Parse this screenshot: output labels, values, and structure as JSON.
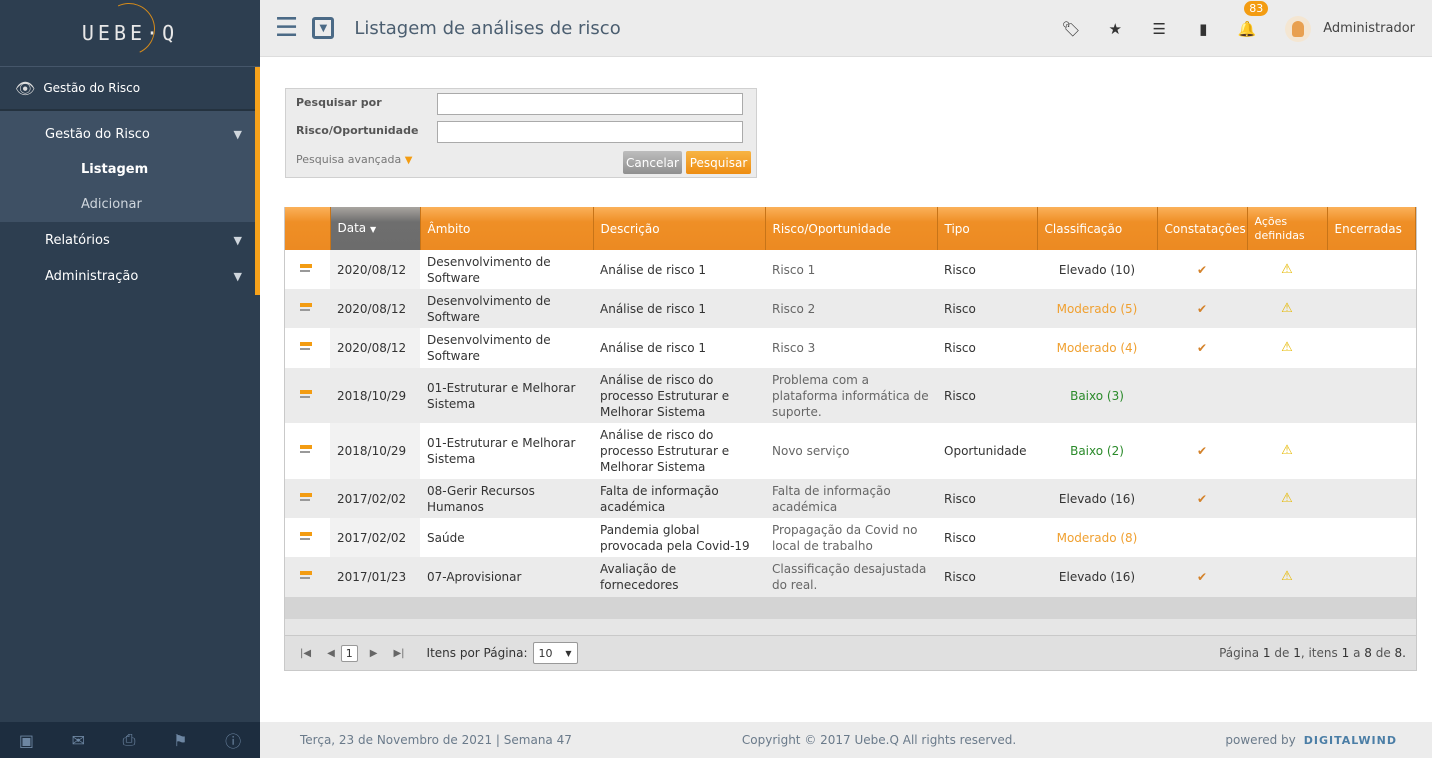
{
  "app": {
    "logo": "UEBE·Q"
  },
  "sidebar": {
    "section": "Gestão do Risco",
    "items": [
      {
        "label": "Gestão do Risco",
        "children": [
          {
            "label": "Listagem"
          },
          {
            "label": "Adicionar"
          }
        ]
      },
      {
        "label": "Relatórios"
      },
      {
        "label": "Administração"
      }
    ],
    "footer_icons": [
      "inbox-icon",
      "mail-icon",
      "print-icon",
      "flag-icon",
      "info-icon"
    ]
  },
  "header": {
    "title": "Listagem de análises de risco",
    "notifications": "83",
    "user": "Administrador"
  },
  "search": {
    "label1": "Pesquisar por",
    "label2": "Risco/Oportunidade",
    "value1": "",
    "value2": "",
    "advanced": "Pesquisa avançada",
    "cancel": "Cancelar",
    "submit": "Pesquisar"
  },
  "table": {
    "columns": [
      "Data",
      "Âmbito",
      "Descrição",
      "Risco/Oportunidade",
      "Tipo",
      "Classificação",
      "Constatações",
      "Ações definidas",
      "Encerradas"
    ],
    "rows": [
      {
        "data": "2020/08/12",
        "ambito": "Desenvolvimento de Software",
        "descricao": "Análise de risco 1",
        "risco": "Risco 1",
        "tipo": "Risco",
        "classificacao": "Elevado (10)",
        "level": "elevado",
        "constatacoes": "✔",
        "acoes": "⚠"
      },
      {
        "data": "2020/08/12",
        "ambito": "Desenvolvimento de Software",
        "descricao": "Análise de risco 1",
        "risco": "Risco 2",
        "tipo": "Risco",
        "classificacao": "Moderado (5)",
        "level": "moderado",
        "constatacoes": "✔",
        "acoes": "⚠"
      },
      {
        "data": "2020/08/12",
        "ambito": "Desenvolvimento de Software",
        "descricao": "Análise de risco 1",
        "risco": "Risco 3",
        "tipo": "Risco",
        "classificacao": "Moderado (4)",
        "level": "moderado",
        "constatacoes": "✔",
        "acoes": "⚠"
      },
      {
        "data": "2018/10/29",
        "ambito": "01-Estruturar e Melhorar Sistema",
        "descricao": "Análise de risco do processo Estruturar e Melhorar Sistema",
        "risco": "Problema com a plataforma informática de suporte.",
        "tipo": "Risco",
        "classificacao": "Baixo (3)",
        "level": "baixo",
        "constatacoes": "",
        "acoes": ""
      },
      {
        "data": "2018/10/29",
        "ambito": "01-Estruturar e Melhorar Sistema",
        "descricao": "Análise de risco do processo Estruturar e Melhorar Sistema",
        "risco": "Novo serviço",
        "tipo": "Oportunidade",
        "classificacao": "Baixo (2)",
        "level": "baixo",
        "constatacoes": "✔",
        "acoes": "⚠"
      },
      {
        "data": "2017/02/02",
        "ambito": "08-Gerir Recursos Humanos",
        "descricao": "Falta de informação académica",
        "risco": "Falta de informação académica",
        "tipo": "Risco",
        "classificacao": "Elevado (16)",
        "level": "elevado",
        "constatacoes": "✔",
        "acoes": "⚠"
      },
      {
        "data": "2017/02/02",
        "ambito": "Saúde",
        "descricao": "Pandemia global provocada pela Covid-19",
        "risco": "Propagação da Covid no local de trabalho",
        "tipo": "Risco",
        "classificacao": "Moderado (8)",
        "level": "moderado",
        "constatacoes": "",
        "acoes": ""
      },
      {
        "data": "2017/01/23",
        "ambito": "07-Aprovisionar",
        "descricao": "Avaliação de fornecedores",
        "risco": "Classificação desajustada do real.",
        "tipo": "Risco",
        "classificacao": "Elevado (16)",
        "level": "elevado",
        "constatacoes": "✔",
        "acoes": "⚠"
      }
    ]
  },
  "pager": {
    "page": "1",
    "per_page_label": "Itens por Página:",
    "per_page": "10",
    "info_prefix": "Página",
    "page_cur": "1",
    "de": "de",
    "pages": "1",
    "itens": ", itens",
    "from": "1",
    "a": "a",
    "to": "8",
    "de2": "de",
    "total": "8."
  },
  "footer": {
    "date": "Terça, 23 de Novembro de 2021 | Semana 47",
    "copyright": "Copyright © 2017 Uebe.Q All rights reserved.",
    "powered": "powered by",
    "brand": "DIGITALWIND"
  },
  "colors": {
    "accent": "#f39c12",
    "sidebar": "#2d3e50",
    "elevado": "#333333",
    "moderado": "#f0a030",
    "baixo": "#2a8a2a"
  }
}
